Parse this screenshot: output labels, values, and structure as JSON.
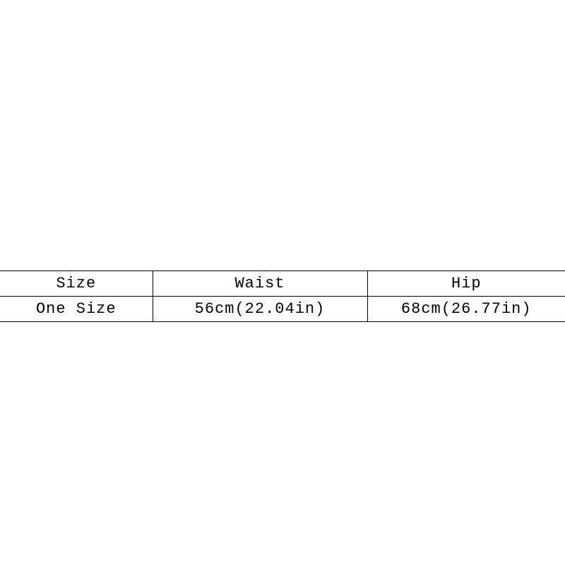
{
  "size_table": {
    "type": "table",
    "background_color": "#ffffff",
    "border_color": "#000000",
    "text_color": "#000000",
    "font_size": 22,
    "font_family": "SimSun, Courier New, monospace",
    "letter_spacing": 1,
    "columns": [
      {
        "label": "Size",
        "width_pct": 27
      },
      {
        "label": "Waist",
        "width_pct": 38
      },
      {
        "label": "Hip",
        "width_pct": 35
      }
    ],
    "rows": [
      {
        "size": "One Size",
        "waist": "56cm(22.04in)",
        "hip": "68cm(26.77in)"
      }
    ]
  }
}
